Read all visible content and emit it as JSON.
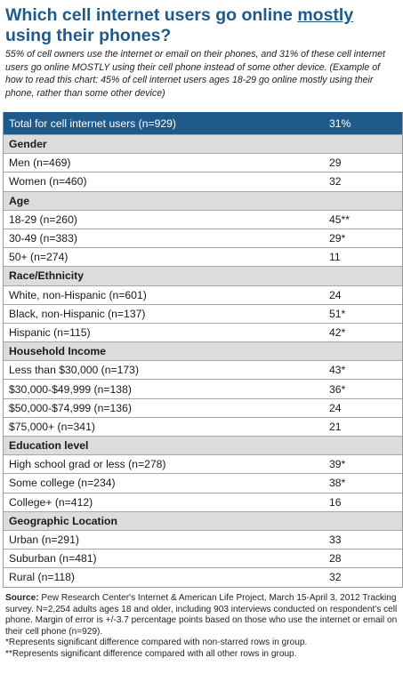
{
  "title": {
    "pre": "Which cell internet users go online ",
    "emph": "mostly",
    "post": " using their phones?"
  },
  "subtitle": "55% of cell owners use the internet or email on their phones, and 31% of these cell internet users go online MOSTLY using their cell phone instead of some other device. (Example of how to read this chart: 45% of cell internet users ages 18-29 go online mostly using their phone, rather than some other device)",
  "total": {
    "label": "Total for cell internet users (n=929)",
    "value": "31%"
  },
  "groups": [
    {
      "name": "Gender",
      "rows": [
        {
          "label": "Men (n=469)",
          "value": "29"
        },
        {
          "label": "Women (n=460)",
          "value": "32"
        }
      ]
    },
    {
      "name": "Age",
      "rows": [
        {
          "label": "18-29 (n=260)",
          "value": "45**"
        },
        {
          "label": "30-49 (n=383)",
          "value": "29*"
        },
        {
          "label": "50+ (n=274)",
          "value": "11"
        }
      ]
    },
    {
      "name": "Race/Ethnicity",
      "rows": [
        {
          "label": "White, non-Hispanic (n=601)",
          "value": "24"
        },
        {
          "label": "Black, non-Hispanic (n=137)",
          "value": "51*"
        },
        {
          "label": "Hispanic (n=115)",
          "value": "42*"
        }
      ]
    },
    {
      "name": "Household Income",
      "rows": [
        {
          "label": "Less than $30,000 (n=173)",
          "value": "43*"
        },
        {
          "label": "$30,000-$49,999 (n=138)",
          "value": "36*"
        },
        {
          "label": "$50,000-$74,999 (n=136)",
          "value": "24"
        },
        {
          "label": "$75,000+ (n=341)",
          "value": "21"
        }
      ]
    },
    {
      "name": "Education level",
      "rows": [
        {
          "label": "High school grad or less (n=278)",
          "value": "39*"
        },
        {
          "label": "Some college (n=234)",
          "value": "38*"
        },
        {
          "label": "College+ (n=412)",
          "value": "16"
        }
      ]
    },
    {
      "name": "Geographic Location",
      "rows": [
        {
          "label": "Urban (n=291)",
          "value": "33"
        },
        {
          "label": "Suburban (n=481)",
          "value": "28"
        },
        {
          "label": "Rural (n=118)",
          "value": "32"
        }
      ]
    }
  ],
  "footer": {
    "source_label": "Source:",
    "source_text": " Pew Research Center's Internet & American Life Project, March 15-April 3, 2012 Tracking survey. N=2,254 adults ages 18 and older, including 903 interviews conducted on respondent's cell phone. Margin of error is +/-3.7 percentage points based on those who use the internet or email on their cell phone (n=929).",
    "note1": "*Represents significant difference compared with non-starred rows in group.",
    "note2": "**Represents significant difference compared with all other rows in group."
  },
  "colors": {
    "title": "#1f5a8a",
    "header_bg": "#1f5a8a",
    "group_bg": "#dcdcdc"
  }
}
